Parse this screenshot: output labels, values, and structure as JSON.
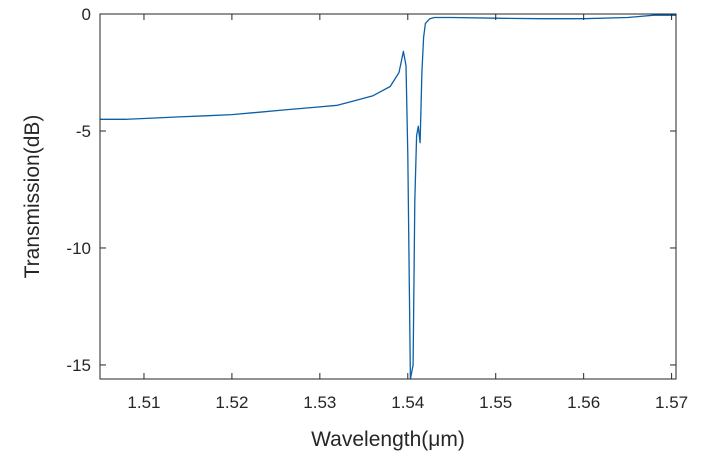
{
  "chart_data": {
    "type": "line",
    "xlabel": "Wavelength(μm)",
    "ylabel": "Transmission(dB)",
    "xlim": [
      1.505,
      1.5705
    ],
    "ylim": [
      -15.6,
      0
    ],
    "xticks": [
      1.51,
      1.52,
      1.53,
      1.54,
      1.55,
      1.56,
      1.57
    ],
    "xtick_labels": [
      "1.51",
      "1.52",
      "1.53",
      "1.54",
      "1.55",
      "1.56",
      "1.57"
    ],
    "yticks": [
      0,
      -5,
      -10,
      -15
    ],
    "ytick_labels": [
      "0",
      "-5",
      "-10",
      "-15"
    ],
    "grid": false,
    "box": true,
    "line_color": "#0b5fa8",
    "series": [
      {
        "x": [
          1.505,
          1.508,
          1.511,
          1.514,
          1.517,
          1.52,
          1.523,
          1.526,
          1.529,
          1.532,
          1.534,
          1.536,
          1.537,
          1.538,
          1.539,
          1.5395,
          1.5398,
          1.54,
          1.5403,
          1.5406,
          1.5408,
          1.541,
          1.5412,
          1.5414,
          1.5416,
          1.5418,
          1.542,
          1.5425,
          1.543,
          1.545,
          1.55,
          1.555,
          1.56,
          1.565,
          1.568,
          1.5705
        ],
        "y": [
          -4.5,
          -4.5,
          -4.45,
          -4.4,
          -4.35,
          -4.3,
          -4.2,
          -4.1,
          -4.0,
          -3.9,
          -3.7,
          -3.5,
          -3.3,
          -3.1,
          -2.5,
          -1.6,
          -2.2,
          -6.0,
          -15.6,
          -15.0,
          -8.0,
          -5.2,
          -4.8,
          -5.5,
          -2.5,
          -1.0,
          -0.4,
          -0.2,
          -0.15,
          -0.15,
          -0.18,
          -0.2,
          -0.2,
          -0.15,
          -0.05,
          -0.05
        ]
      }
    ]
  }
}
